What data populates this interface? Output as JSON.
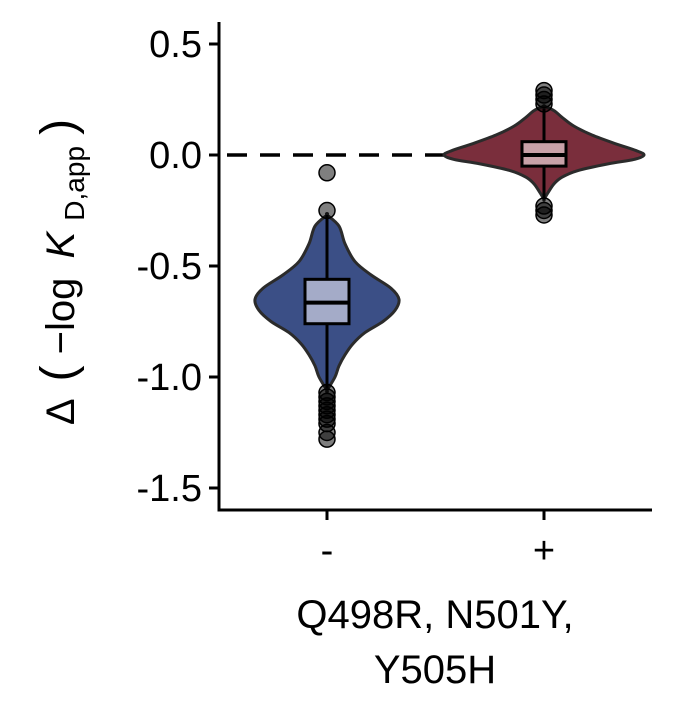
{
  "chart_data": {
    "type": "violin",
    "categories": [
      "-",
      "+"
    ],
    "xlabel_lines": [
      "Q498R, N501Y,",
      "Y505H"
    ],
    "ylabel": {
      "delta": "Δ",
      "open_paren": "(",
      "minus_log": "−log",
      "k": "K",
      "subscript": "D,app",
      "close_paren": ")"
    },
    "ylim": [
      -1.6,
      0.6
    ],
    "yticks": [
      0.5,
      0.0,
      -0.5,
      -1.0,
      -1.5
    ],
    "ytick_labels": [
      "0.5",
      "0.0",
      "-0.5",
      "-1.0",
      "-1.5"
    ],
    "reference_line": 0.0,
    "grid": false,
    "legend": "none",
    "series": [
      {
        "category": "-",
        "violin_color": "#3b4f86",
        "box_color": "#a4abc8",
        "violin_profile": [
          [
            -0.27,
            0.0
          ],
          [
            -0.32,
            0.06
          ],
          [
            -0.4,
            0.09
          ],
          [
            -0.48,
            0.14
          ],
          [
            -0.54,
            0.22
          ],
          [
            -0.6,
            0.32
          ],
          [
            -0.65,
            0.36
          ],
          [
            -0.7,
            0.34
          ],
          [
            -0.75,
            0.28
          ],
          [
            -0.8,
            0.19
          ],
          [
            -0.85,
            0.13
          ],
          [
            -0.9,
            0.09
          ],
          [
            -0.95,
            0.06
          ],
          [
            -1.0,
            0.04
          ],
          [
            -1.06,
            0.0
          ]
        ],
        "whisker": [
          -1.05,
          -0.27
        ],
        "q1": -0.76,
        "median": -0.665,
        "q3": -0.56,
        "outliers": [
          -0.08,
          -0.25,
          -1.07,
          -1.09,
          -1.11,
          -1.13,
          -1.15,
          -1.17,
          -1.19,
          -1.21,
          -1.25,
          -1.28
        ]
      },
      {
        "category": "+",
        "violin_color": "#7a2e3c",
        "box_color": "#c8a1a8",
        "violin_profile": [
          [
            0.22,
            0.0
          ],
          [
            0.2,
            0.05
          ],
          [
            0.17,
            0.09
          ],
          [
            0.13,
            0.15
          ],
          [
            0.09,
            0.24
          ],
          [
            0.05,
            0.36
          ],
          [
            0.02,
            0.46
          ],
          [
            0.0,
            0.5
          ],
          [
            -0.02,
            0.45
          ],
          [
            -0.04,
            0.32
          ],
          [
            -0.07,
            0.17
          ],
          [
            -0.1,
            0.09
          ],
          [
            -0.13,
            0.05
          ],
          [
            -0.17,
            0.02
          ],
          [
            -0.2,
            0.0
          ]
        ],
        "whisker": [
          -0.2,
          0.21
        ],
        "q1": -0.05,
        "median": 0.0,
        "q3": 0.06,
        "outliers": [
          0.29,
          0.27,
          0.25,
          0.23,
          -0.23,
          -0.25,
          -0.27
        ]
      }
    ]
  }
}
